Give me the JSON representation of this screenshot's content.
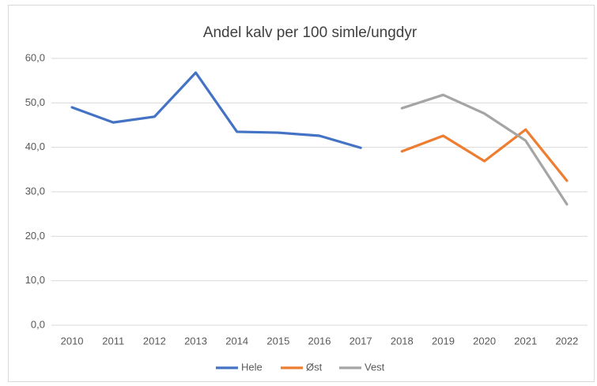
{
  "chart_data": {
    "type": "line",
    "title": "Andel kalv per 100 simle/ungdyr",
    "categories": [
      "2010",
      "2011",
      "2012",
      "2013",
      "2014",
      "2015",
      "2016",
      "2017",
      "2018",
      "2019",
      "2020",
      "2021",
      "2022"
    ],
    "series": [
      {
        "name": "Hele",
        "color": "#4472c4",
        "values": [
          49.0,
          45.6,
          46.9,
          56.8,
          43.5,
          43.3,
          42.6,
          39.9,
          null,
          null,
          null,
          null,
          null
        ]
      },
      {
        "name": "Øst",
        "color": "#ed7d31",
        "values": [
          null,
          null,
          null,
          null,
          null,
          null,
          null,
          null,
          39.1,
          42.6,
          36.9,
          44.0,
          32.5
        ]
      },
      {
        "name": "Vest",
        "color": "#a5a5a5",
        "values": [
          null,
          null,
          null,
          null,
          null,
          null,
          null,
          null,
          48.8,
          51.8,
          47.6,
          41.5,
          27.2
        ]
      }
    ],
    "ylim": [
      0,
      60
    ],
    "yticks": [
      {
        "value": 0,
        "label": "0,0"
      },
      {
        "value": 10,
        "label": "10,0"
      },
      {
        "value": 20,
        "label": "20,0"
      },
      {
        "value": 30,
        "label": "30,0"
      },
      {
        "value": 40,
        "label": "40,0"
      },
      {
        "value": 50,
        "label": "50,0"
      },
      {
        "value": 60,
        "label": "60,0"
      }
    ],
    "grid": true,
    "legend": "bottom"
  }
}
